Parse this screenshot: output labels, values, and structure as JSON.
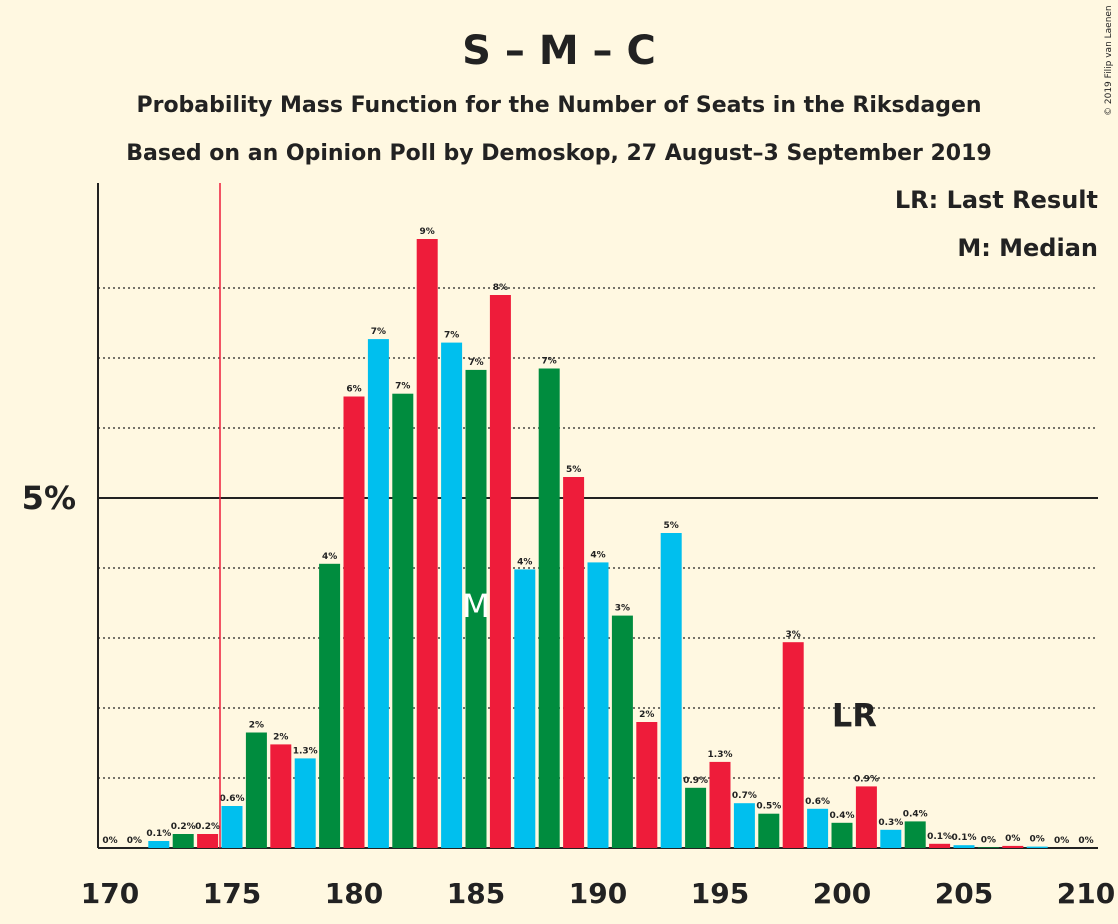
{
  "title": "S – M – C",
  "subtitle1": "Probability Mass Function for the Number of Seats in the Riksdagen",
  "subtitle2": "Based on an Opinion Poll by Demoskop, 27 August–3 September 2019",
  "copyright": "© 2019 Filip van Laenen",
  "legend": {
    "lr": "LR: Last Result",
    "median": "M: Median"
  },
  "colors": {
    "background": "#fff8e1",
    "cyan": "#00bfee",
    "green": "#008c3e",
    "red": "#ee1c3a",
    "lastResultLine": "#ee1c3a"
  },
  "chart_data": {
    "type": "bar",
    "xlabel": "",
    "ylabel": "",
    "ylim": [
      0,
      9.5
    ],
    "xlim": [
      170,
      210
    ],
    "x_ticks": [
      "170",
      "175",
      "180",
      "185",
      "190",
      "195",
      "200",
      "205",
      "210"
    ],
    "y_tick_label": "5%",
    "y_solid_line": 5,
    "y_dotted_lines": [
      1,
      2,
      3,
      4,
      6,
      7,
      8
    ],
    "last_result_seat": 175,
    "lr_label": "LR",
    "lr_label_seat": 201,
    "median_seat": 185,
    "median_label": "M",
    "bars": [
      {
        "x": 170,
        "value": 0.0,
        "label": "0%",
        "color": "cyan"
      },
      {
        "x": 171,
        "value": 0.0,
        "label": "0%",
        "color": "green"
      },
      {
        "x": 172,
        "value": 0.1,
        "label": "0.1%",
        "color": "cyan"
      },
      {
        "x": 173,
        "value": 0.2,
        "label": "0.2%",
        "color": "green"
      },
      {
        "x": 174,
        "value": 0.2,
        "label": "0.2%",
        "color": "red"
      },
      {
        "x": 175,
        "value": 0.6,
        "label": "0.6%",
        "color": "cyan"
      },
      {
        "x": 176,
        "value": 1.65,
        "label": "2%",
        "color": "green"
      },
      {
        "x": 177,
        "value": 1.48,
        "label": "2%",
        "color": "red"
      },
      {
        "x": 178,
        "value": 1.28,
        "label": "1.3%",
        "color": "cyan"
      },
      {
        "x": 179,
        "value": 4.06,
        "label": "4%",
        "color": "green"
      },
      {
        "x": 180,
        "value": 6.45,
        "label": "6%",
        "color": "red"
      },
      {
        "x": 181,
        "value": 7.27,
        "label": "7%",
        "color": "cyan"
      },
      {
        "x": 182,
        "value": 6.49,
        "label": "7%",
        "color": "green"
      },
      {
        "x": 183,
        "value": 8.7,
        "label": "9%",
        "color": "red"
      },
      {
        "x": 184,
        "value": 7.22,
        "label": "7%",
        "color": "cyan"
      },
      {
        "x": 185,
        "value": 6.83,
        "label": "7%",
        "color": "green"
      },
      {
        "x": 186,
        "value": 7.9,
        "label": "8%",
        "color": "red"
      },
      {
        "x": 187,
        "value": 3.98,
        "label": "4%",
        "color": "cyan"
      },
      {
        "x": 188,
        "value": 6.85,
        "label": "7%",
        "color": "green"
      },
      {
        "x": 189,
        "value": 5.3,
        "label": "5%",
        "color": "red"
      },
      {
        "x": 190,
        "value": 4.08,
        "label": "4%",
        "color": "cyan"
      },
      {
        "x": 191,
        "value": 3.32,
        "label": "3%",
        "color": "green"
      },
      {
        "x": 192,
        "value": 1.8,
        "label": "2%",
        "color": "red"
      },
      {
        "x": 193,
        "value": 4.5,
        "label": "5%",
        "color": "cyan"
      },
      {
        "x": 194,
        "value": 0.86,
        "label": "0.9%",
        "color": "green"
      },
      {
        "x": 195,
        "value": 1.23,
        "label": "1.3%",
        "color": "red"
      },
      {
        "x": 196,
        "value": 0.64,
        "label": "0.7%",
        "color": "cyan"
      },
      {
        "x": 197,
        "value": 0.49,
        "label": "0.5%",
        "color": "green"
      },
      {
        "x": 198,
        "value": 2.94,
        "label": "3%",
        "color": "red"
      },
      {
        "x": 199,
        "value": 0.56,
        "label": "0.6%",
        "color": "cyan"
      },
      {
        "x": 200,
        "value": 0.36,
        "label": "0.4%",
        "color": "green"
      },
      {
        "x": 201,
        "value": 0.88,
        "label": "0.9%",
        "color": "red"
      },
      {
        "x": 202,
        "value": 0.26,
        "label": "0.3%",
        "color": "cyan"
      },
      {
        "x": 203,
        "value": 0.38,
        "label": "0.4%",
        "color": "green"
      },
      {
        "x": 204,
        "value": 0.06,
        "label": "0.1%",
        "color": "red"
      },
      {
        "x": 205,
        "value": 0.04,
        "label": "0.1%",
        "color": "cyan"
      },
      {
        "x": 206,
        "value": 0.01,
        "label": "0%",
        "color": "green"
      },
      {
        "x": 207,
        "value": 0.03,
        "label": "0%",
        "color": "red"
      },
      {
        "x": 208,
        "value": 0.02,
        "label": "0%",
        "color": "cyan"
      },
      {
        "x": 209,
        "value": 0.0,
        "label": "0%",
        "color": "green"
      },
      {
        "x": 210,
        "value": 0.0,
        "label": "0%",
        "color": "red"
      }
    ]
  }
}
